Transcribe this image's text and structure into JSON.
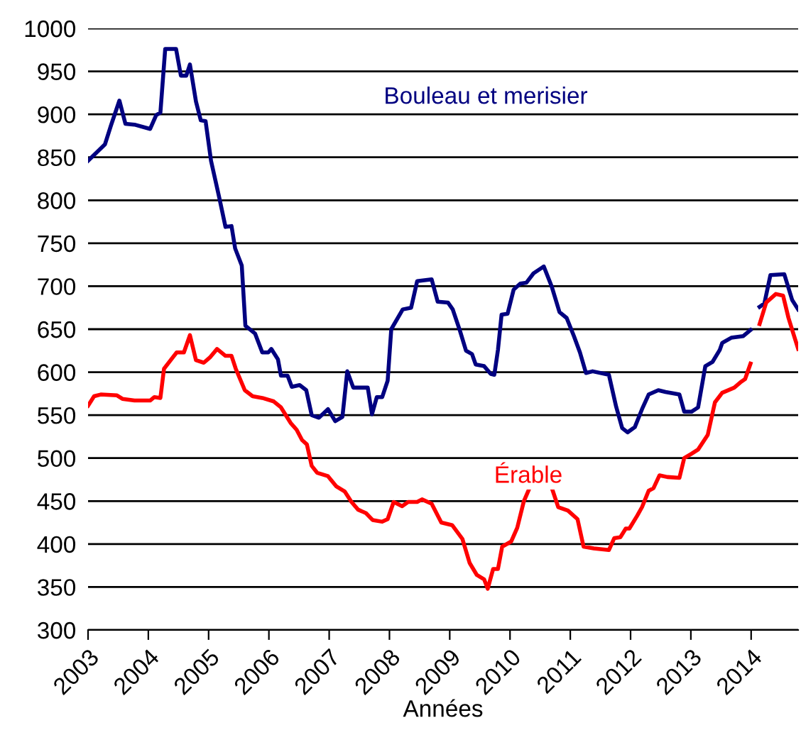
{
  "chart_data": {
    "type": "line",
    "xlabel": "Années",
    "xlim": [
      2003,
      2014.78
    ],
    "xticks": [
      2003,
      2004,
      2005,
      2006,
      2007,
      2008,
      2009,
      2010,
      2011,
      2012,
      2013,
      2014
    ],
    "ylim": [
      300,
      1000
    ],
    "yticks": [
      300,
      350,
      400,
      450,
      500,
      550,
      600,
      650,
      700,
      750,
      800,
      850,
      900,
      950,
      1000
    ],
    "grid": "y",
    "legend": false,
    "marker": "none",
    "line_style": "solid",
    "series": [
      {
        "name": "Bouleau et merisier",
        "color": "#000080",
        "x": [
          2003.0,
          2003.28,
          2003.38,
          2003.52,
          2003.62,
          2003.77,
          2004.03,
          2004.13,
          2004.2,
          2004.28,
          2004.46,
          2004.54,
          2004.63,
          2004.69,
          2004.79,
          2004.87,
          2004.95,
          2005.04,
          2005.18,
          2005.28,
          2005.38,
          2005.44,
          2005.55,
          2005.61,
          2005.77,
          2005.89,
          2005.99,
          2006.04,
          2006.15,
          2006.2,
          2006.31,
          2006.38,
          2006.51,
          2006.62,
          2006.71,
          2006.83,
          2006.98,
          2007.1,
          2007.22,
          2007.3,
          2007.4,
          2007.64,
          2007.71,
          2007.79,
          2007.88,
          2007.97,
          2008.03,
          2008.22,
          2008.36,
          2008.46,
          2008.7,
          2008.8,
          2008.97,
          2009.05,
          2009.17,
          2009.27,
          2009.37,
          2009.43,
          2009.57,
          2009.68,
          2009.74,
          2009.8,
          2009.86,
          2009.96,
          2010.06,
          2010.17,
          2010.27,
          2010.39,
          2010.56,
          2010.69,
          2010.82,
          2010.94,
          2011.06,
          2011.16,
          2011.26,
          2011.37,
          2011.64,
          2011.76,
          2011.86,
          2011.95,
          2012.07,
          2012.19,
          2012.3,
          2012.46,
          2012.58,
          2012.81,
          2012.89,
          2013.01,
          2013.12,
          2013.24,
          2013.36,
          2013.48,
          2013.52,
          2013.67,
          2013.87,
          2013.99,
          2014.06,
          2014.14,
          2014.22,
          2014.32,
          2014.55,
          2014.68,
          2014.78
        ],
        "values": [
          846,
          865,
          887,
          916,
          889,
          888,
          883,
          899,
          902,
          976,
          976,
          945,
          945,
          958,
          915,
          893,
          892,
          846,
          802,
          769,
          770,
          744,
          724,
          654,
          645,
          623,
          623,
          627,
          615,
          596,
          596,
          583,
          585,
          579,
          550,
          547,
          557,
          543,
          548,
          601,
          582,
          582,
          551,
          571,
          571,
          590,
          650,
          673,
          675,
          706,
          708,
          682,
          681,
          673,
          648,
          625,
          621,
          609,
          607,
          598,
          597,
          626,
          667,
          668,
          696,
          703,
          704,
          715,
          723,
          700,
          670,
          663,
          642,
          623,
          599,
          601,
          597,
          560,
          535,
          530,
          536,
          557,
          574,
          579,
          577,
          574,
          554,
          554,
          559,
          607,
          612,
          626,
          634,
          640,
          642,
          649,
          null,
          676,
          680,
          713,
          714,
          684,
          673
        ]
      },
      {
        "name": "Érable",
        "color": "#ff0000",
        "x": [
          2003.0,
          2003.1,
          2003.21,
          2003.48,
          2003.57,
          2003.77,
          2004.03,
          2004.1,
          2004.2,
          2004.26,
          2004.47,
          2004.59,
          2004.69,
          2004.79,
          2004.92,
          2005.02,
          2005.14,
          2005.28,
          2005.38,
          2005.45,
          2005.6,
          2005.73,
          2005.89,
          2006.08,
          2006.2,
          2006.36,
          2006.46,
          2006.55,
          2006.63,
          2006.71,
          2006.8,
          2006.98,
          2007.12,
          2007.26,
          2007.37,
          2007.48,
          2007.61,
          2007.72,
          2007.88,
          2007.97,
          2008.07,
          2008.21,
          2008.31,
          2008.46,
          2008.54,
          2008.7,
          2008.86,
          2009.04,
          2009.21,
          2009.33,
          2009.45,
          2009.57,
          2009.63,
          2009.72,
          2009.8,
          2009.87,
          2010.02,
          2010.12,
          2010.23,
          2010.31,
          2010.5,
          2010.69,
          2010.8,
          2010.96,
          2011.12,
          2011.22,
          2011.39,
          2011.64,
          2011.73,
          2011.83,
          2011.92,
          2011.98,
          2012.11,
          2012.19,
          2012.3,
          2012.38,
          2012.48,
          2012.61,
          2012.81,
          2012.89,
          2013.01,
          2013.12,
          2013.28,
          2013.4,
          2013.52,
          2013.72,
          2013.82,
          2013.9,
          2013.99,
          2014.06,
          2014.14,
          2014.25,
          2014.41,
          2014.53,
          2014.62,
          2014.7,
          2014.78
        ],
        "values": [
          561,
          572,
          574,
          573,
          569,
          567,
          567,
          571,
          570,
          604,
          623,
          623,
          643,
          614,
          611,
          617,
          627,
          619,
          619,
          604,
          579,
          572,
          570,
          566,
          559,
          541,
          533,
          521,
          516,
          491,
          483,
          479,
          467,
          461,
          449,
          440,
          436,
          428,
          426,
          429,
          449,
          444,
          449,
          449,
          452,
          447,
          425,
          422,
          406,
          378,
          364,
          359,
          348,
          371,
          371,
          397,
          403,
          419,
          450,
          463,
          null,
          466,
          443,
          439,
          429,
          397,
          395,
          393,
          407,
          408,
          418,
          418,
          433,
          443,
          462,
          465,
          480,
          478,
          477,
          500,
          505,
          510,
          527,
          565,
          576,
          582,
          588,
          592,
          610,
          null,
          656,
          681,
          691,
          689,
          663,
          645,
          627
        ]
      }
    ]
  }
}
